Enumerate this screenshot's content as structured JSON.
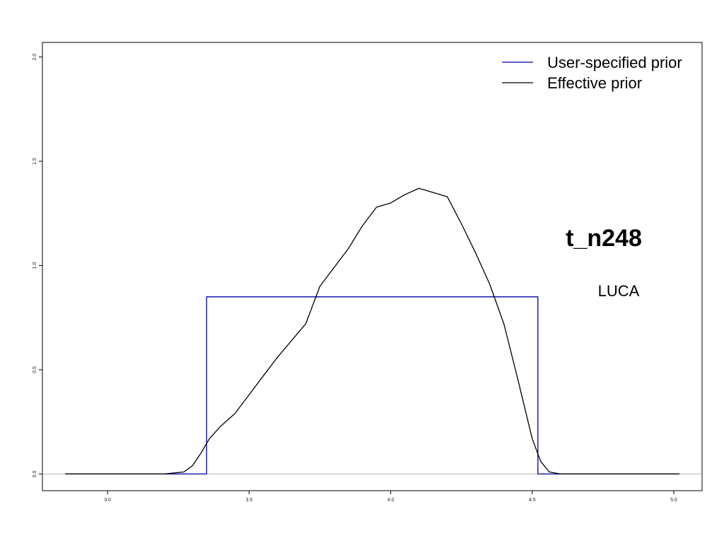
{
  "chart_data": {
    "type": "line",
    "title": "",
    "xlabel": "",
    "ylabel": "",
    "xlim": [
      2.77,
      5.1
    ],
    "ylim": [
      -0.08,
      2.07
    ],
    "x_ticks": [
      3.0,
      3.5,
      4.0,
      4.5,
      5.0
    ],
    "x_tick_labels": [
      "3.0",
      "3.5",
      "4.0",
      "4.5",
      "5.0"
    ],
    "y_ticks": [
      0.0,
      0.5,
      1.0,
      1.5,
      2.0
    ],
    "y_tick_labels": [
      "0.0",
      "0.5",
      "1.0",
      "1.5",
      "2.0"
    ],
    "grid": false,
    "baseline": 0.0,
    "legend": {
      "placement": "top-right",
      "entries": [
        "User-specified prior",
        "Effective prior"
      ]
    },
    "annotations": {
      "node_label": "t_n248",
      "calibration_label": "LUCA"
    },
    "series": [
      {
        "name": "User-specified prior",
        "color": "#0000aa",
        "x": [
          2.85,
          3.35,
          3.35,
          4.52,
          4.52,
          5.02
        ],
        "y": [
          0.0,
          0.0,
          0.85,
          0.85,
          0.0,
          0.0
        ]
      },
      {
        "name": "Effective prior",
        "color": "#000000",
        "x": [
          2.85,
          3.2,
          3.27,
          3.3,
          3.33,
          3.36,
          3.4,
          3.45,
          3.5,
          3.55,
          3.6,
          3.65,
          3.7,
          3.75,
          3.8,
          3.85,
          3.9,
          3.95,
          4.0,
          4.05,
          4.1,
          4.15,
          4.2,
          4.25,
          4.3,
          4.35,
          4.4,
          4.45,
          4.5,
          4.53,
          4.56,
          4.6,
          5.02
        ],
        "y": [
          0.0,
          0.0,
          0.01,
          0.04,
          0.1,
          0.17,
          0.23,
          0.29,
          0.38,
          0.47,
          0.56,
          0.64,
          0.72,
          0.9,
          0.99,
          1.08,
          1.19,
          1.28,
          1.3,
          1.34,
          1.37,
          1.35,
          1.33,
          1.2,
          1.06,
          0.91,
          0.72,
          0.45,
          0.17,
          0.06,
          0.01,
          0.0,
          0.0
        ]
      }
    ]
  }
}
